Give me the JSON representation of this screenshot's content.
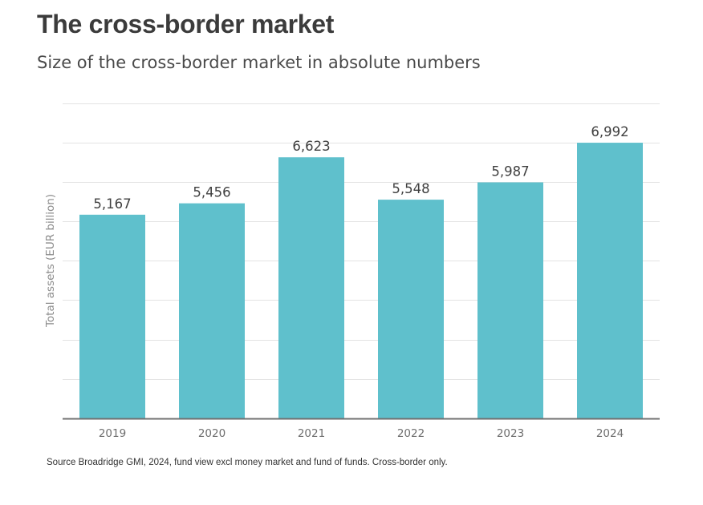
{
  "title": "The cross-border market",
  "subtitle": "Size of the cross-border market in absolute numbers",
  "source": "Source Broadridge GMI, 2024, fund view excl money market and fund of funds. Cross-border only.",
  "colors": {
    "bar": "#5fc0cc",
    "grid": "#e3e3e3",
    "axis": "#707070",
    "value_label": "#404040",
    "tick_label": "#6e6e6e",
    "axis_title": "#8c8c8c"
  },
  "chart_data": {
    "type": "bar",
    "title": "The cross-border market",
    "subtitle": "Size of the cross-border market in absolute numbers",
    "xlabel": "",
    "ylabel": "Total assets (EUR billion)",
    "categories": [
      "2019",
      "2020",
      "2021",
      "2022",
      "2023",
      "2024"
    ],
    "values": [
      5167,
      5456,
      6623,
      5548,
      5987,
      6992
    ],
    "value_labels": [
      "5,167",
      "5,456",
      "6,623",
      "5,548",
      "5,987",
      "6,992"
    ],
    "ylim": [
      0,
      8000
    ],
    "y_gridlines": [
      1000,
      2000,
      3000,
      4000,
      5000,
      6000,
      7000,
      8000
    ],
    "y_tick_labels_shown": false,
    "grid": true,
    "legend": false
  }
}
